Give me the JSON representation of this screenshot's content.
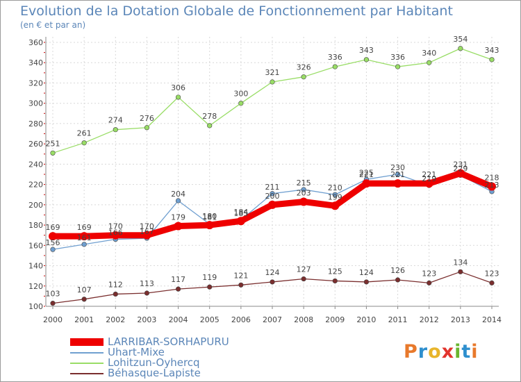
{
  "header": {
    "title": "Evolution de la Dotation Globale de Fonctionnement par Habitant",
    "subtitle": "(en € et par an)"
  },
  "brand": {
    "text": "Proxiti",
    "letters": [
      {
        "char": "P",
        "color": "#e8792b"
      },
      {
        "char": "r",
        "color": "#2e8fce"
      },
      {
        "char": "o",
        "color": "#e8b52b"
      },
      {
        "char": "x",
        "color": "#e2342d"
      },
      {
        "char": "i",
        "color": "#6ab52f"
      },
      {
        "char": "t",
        "color": "#2e8fce"
      },
      {
        "char": "i",
        "color": "#e8792b"
      }
    ]
  },
  "chart_data": {
    "type": "line",
    "title": "Evolution de la Dotation Globale de Fonctionnement par Habitant",
    "subtitle": "(en € et par an)",
    "xlabel": "",
    "ylabel": "",
    "x": [
      "2000",
      "2001",
      "2002",
      "2003",
      "2004",
      "2005",
      "2006",
      "2007",
      "2008",
      "2009",
      "2010",
      "2011",
      "2012",
      "2013",
      "2014"
    ],
    "ylim": [
      100,
      360
    ],
    "yticks": [
      100,
      120,
      140,
      160,
      180,
      200,
      220,
      240,
      260,
      280,
      300,
      320,
      340,
      360
    ],
    "grid": true,
    "legend_position": "bottom-left",
    "series": [
      {
        "name": "LARRIBAR-SORHAPURU",
        "color": "#ee0000",
        "emphasis": true,
        "values": [
          169,
          169,
          170,
          170,
          179,
          180,
          184,
          200,
          203,
          199,
          221,
          221,
          221,
          231,
          218
        ]
      },
      {
        "name": "Uhart-Mixe",
        "color": "#6f9fd0",
        "emphasis": false,
        "values": [
          156,
          161,
          166,
          167,
          204,
          181,
          185,
          211,
          215,
          210,
          225,
          230,
          219,
          229,
          213
        ]
      },
      {
        "name": "Lohitzun-Oyhercq",
        "color": "#99dd66",
        "emphasis": false,
        "values": [
          251,
          261,
          274,
          276,
          306,
          278,
          300,
          321,
          326,
          336,
          343,
          336,
          340,
          354,
          343
        ]
      },
      {
        "name": "Béhasque-Lapiste",
        "color": "#7a2e2e",
        "emphasis": false,
        "values": [
          103,
          107,
          112,
          113,
          117,
          119,
          121,
          124,
          127,
          125,
          124,
          126,
          123,
          134,
          123
        ]
      }
    ]
  }
}
